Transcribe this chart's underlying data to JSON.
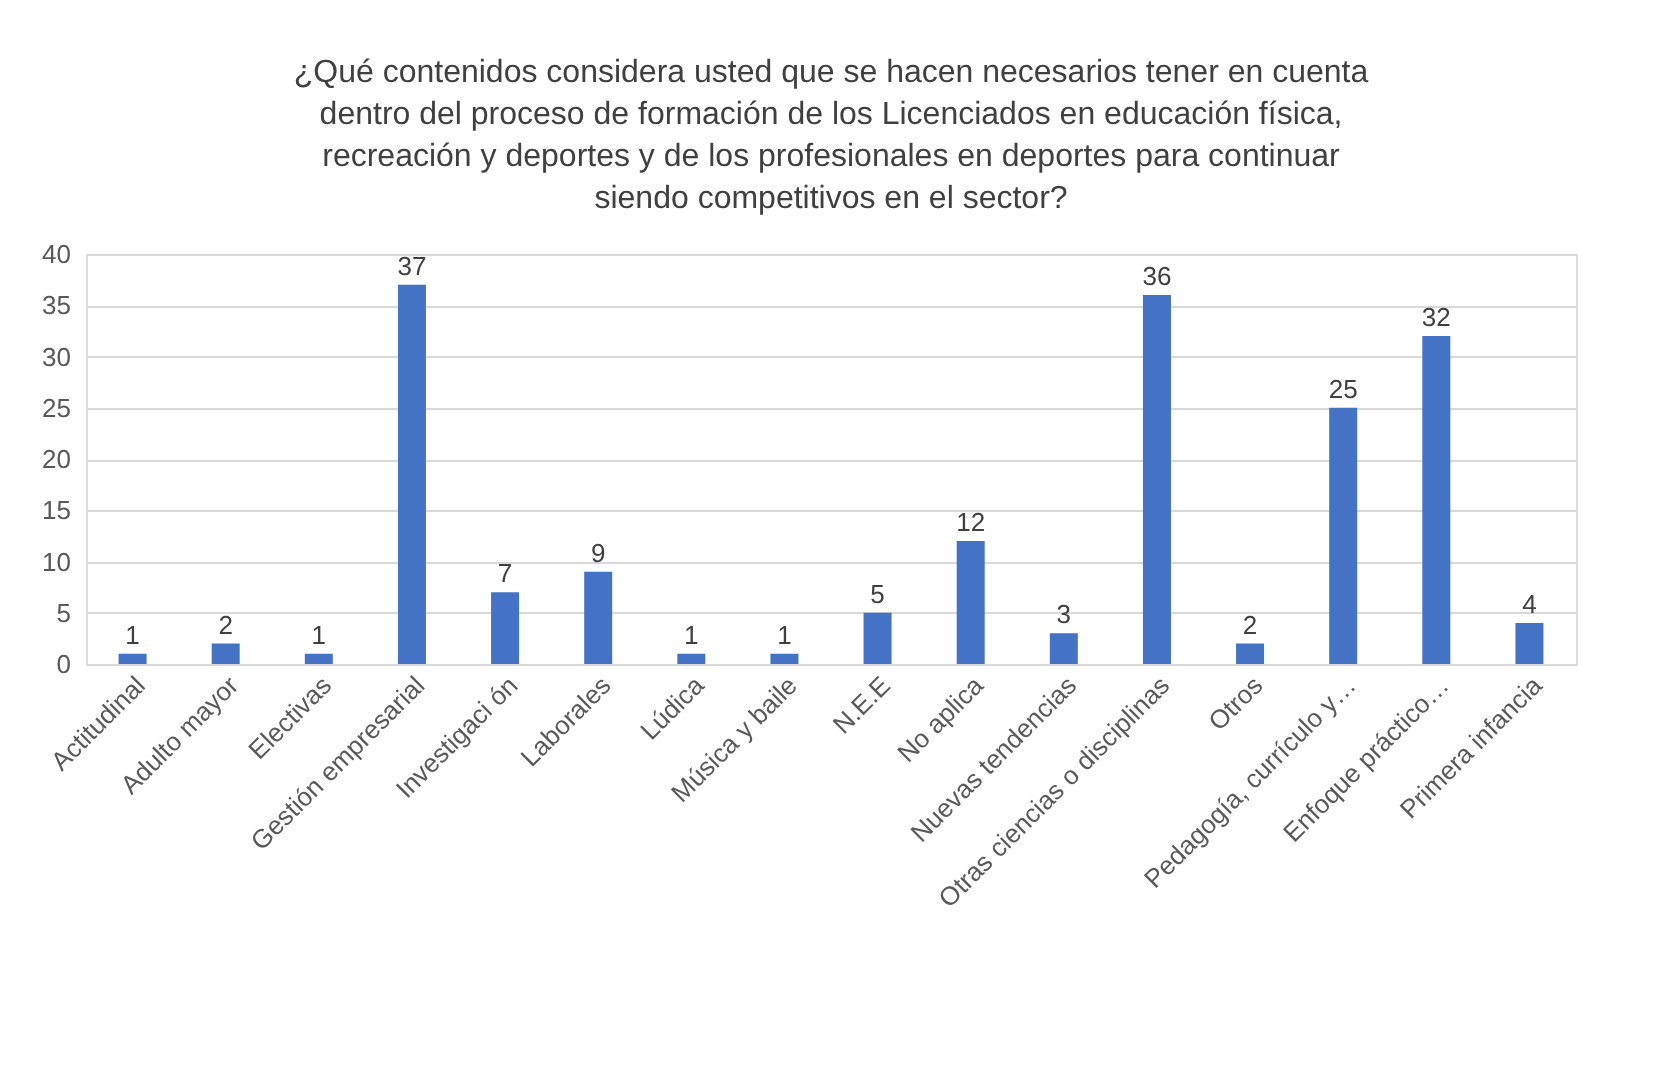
{
  "chart_data": {
    "type": "bar",
    "title": "¿Qué contenidos considera usted que se hacen necesarios tener en cuenta dentro del proceso de formación de los Licenciados en educación física, recreación y deportes y de los profesionales en deportes para continuar siendo competitivos en el sector?",
    "categories": [
      "Actitudinal",
      "Adulto mayor",
      "Electivas",
      "Gestión empresarial",
      "Investigaci ón",
      "Laborales",
      "Lúdica",
      "Música y baile",
      "N.E.E",
      "No aplica",
      "Nuevas tendencias",
      "Otras ciencias o disciplinas",
      "Otros",
      "Pedagogía, currículo y…",
      "Enfoque práctico…",
      "Primera infancia"
    ],
    "values": [
      1,
      2,
      1,
      37,
      7,
      9,
      1,
      1,
      5,
      12,
      3,
      36,
      2,
      25,
      32,
      4
    ],
    "color": "#4472c4",
    "ylim": [
      0,
      40
    ],
    "yticks": [
      0,
      5,
      10,
      15,
      20,
      25,
      30,
      35,
      40
    ],
    "grid": "y",
    "data_labels": true
  }
}
